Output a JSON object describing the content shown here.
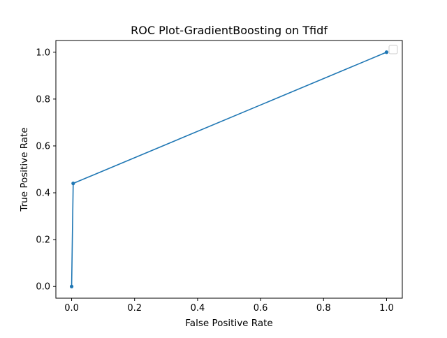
{
  "chart_data": {
    "type": "line",
    "title": "ROC Plot-GradientBoosting on Tfidf",
    "xlabel": "False Positive Rate",
    "ylabel": "True Positive Rate",
    "xlim": [
      -0.05,
      1.05
    ],
    "ylim": [
      -0.05,
      1.05
    ],
    "xticks": [
      0.0,
      0.2,
      0.4,
      0.6,
      0.8,
      1.0
    ],
    "yticks": [
      0.0,
      0.2,
      0.4,
      0.6,
      0.8,
      1.0
    ],
    "xtick_labels": [
      "0.0",
      "0.2",
      "0.4",
      "0.6",
      "0.8",
      "1.0"
    ],
    "ytick_labels": [
      "0.0",
      "0.2",
      "0.4",
      "0.6",
      "0.8",
      "1.0"
    ],
    "grid": false,
    "legend": "upper-right, empty",
    "series": [
      {
        "color": "#1f77b4",
        "marker": "dot",
        "x": [
          0.0,
          0.005,
          1.0
        ],
        "y": [
          0.0,
          0.44,
          1.0
        ]
      }
    ]
  }
}
